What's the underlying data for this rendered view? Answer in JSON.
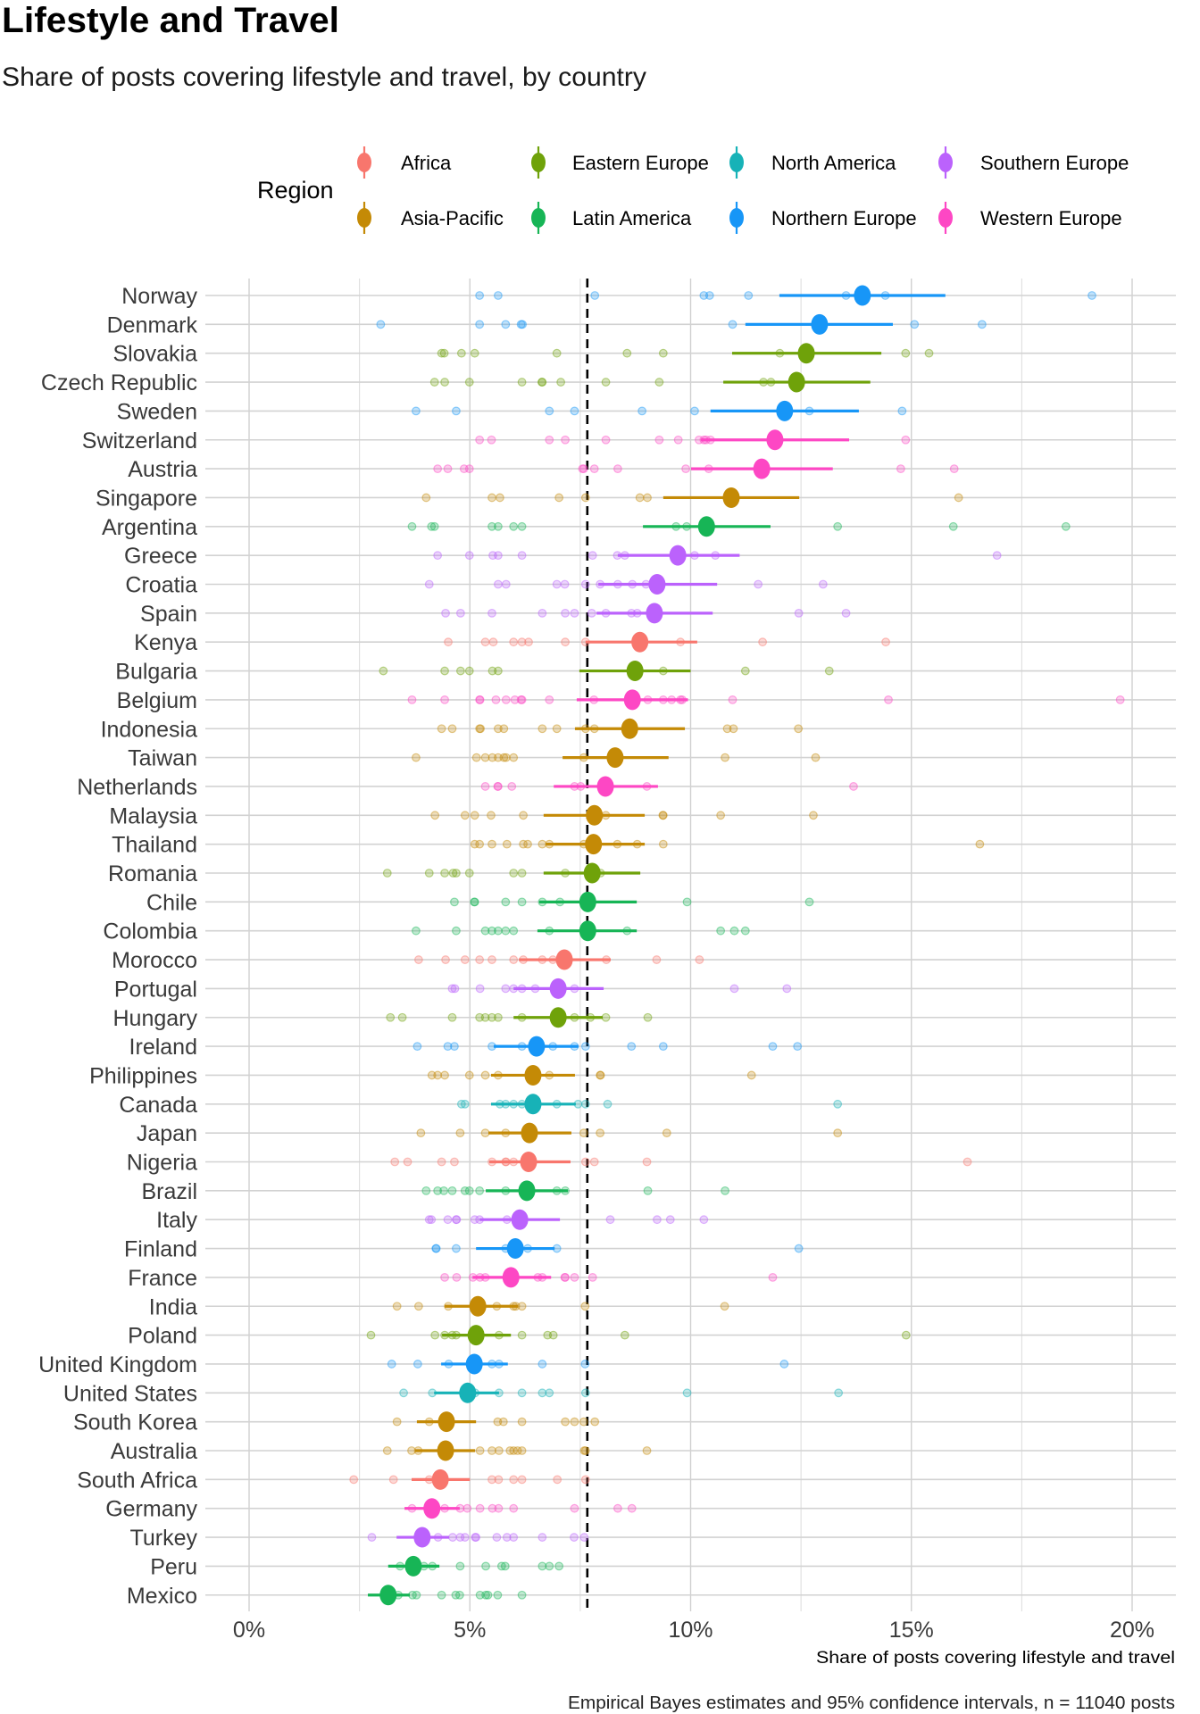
{
  "chart_data": {
    "type": "scatter",
    "title": "Lifestyle and Travel",
    "subtitle": "Share of posts covering lifestyle and travel, by country",
    "xlabel": "Share of posts covering lifestyle and travel",
    "ylabel": "",
    "caption": "Empirical Bayes estimates and 95% confidence intervals, n = 11040 posts",
    "xlim": [
      0,
      21
    ],
    "x_ticks": [
      0,
      5,
      10,
      15,
      20
    ],
    "x_tick_labels": [
      "0%",
      "5%",
      "10%",
      "15%",
      "20%"
    ],
    "x_minor_gridlines": [
      2.5,
      7.5,
      12.5,
      17.5
    ],
    "grid": true,
    "reference_line": {
      "value": 7.66,
      "style": "dashed"
    },
    "legend": {
      "title": "Region",
      "placement": "top",
      "entries": [
        {
          "name": "Africa",
          "color": "#F8766D"
        },
        {
          "name": "Asia-Pacific",
          "color": "#C48A06"
        },
        {
          "name": "Eastern Europe",
          "color": "#6FA20A"
        },
        {
          "name": "Latin America",
          "color": "#17B556"
        },
        {
          "name": "North America",
          "color": "#17B2B7"
        },
        {
          "name": "Northern Europe",
          "color": "#1796F7"
        },
        {
          "name": "Southern Europe",
          "color": "#BB62FC"
        },
        {
          "name": "Western Europe",
          "color": "#FD47C4"
        }
      ]
    },
    "series": [
      {
        "country": "Norway",
        "region": "Northern Europe",
        "estimate": 13.89,
        "ci": [
          12.01,
          15.77
        ],
        "points": [
          5.22,
          5.64,
          7.83,
          10.3,
          10.43,
          11.31,
          13.52,
          14.41,
          19.09
        ]
      },
      {
        "country": "Denmark",
        "region": "Northern Europe",
        "estimate": 12.92,
        "ci": [
          11.24,
          14.58
        ],
        "points": [
          2.98,
          5.22,
          5.81,
          6.16,
          6.19,
          10.95,
          15.07,
          16.6
        ]
      },
      {
        "country": "Slovakia",
        "region": "Eastern Europe",
        "estimate": 12.62,
        "ci": [
          10.94,
          14.32
        ],
        "points": [
          4.36,
          4.42,
          4.81,
          5.11,
          6.97,
          8.56,
          9.38,
          12.02,
          14.87,
          15.4
        ]
      },
      {
        "country": "Czech Republic",
        "region": "Eastern Europe",
        "estimate": 12.4,
        "ci": [
          10.74,
          14.07
        ],
        "points": [
          4.2,
          4.43,
          4.99,
          6.18,
          6.63,
          6.64,
          7.06,
          8.08,
          9.29,
          11.65,
          11.82
        ]
      },
      {
        "country": "Sweden",
        "region": "Northern Europe",
        "estimate": 12.13,
        "ci": [
          10.45,
          13.81
        ],
        "points": [
          3.78,
          4.69,
          6.8,
          7.37,
          8.9,
          10.09,
          12.69,
          14.79
        ]
      },
      {
        "country": "Switzerland",
        "region": "Western Europe",
        "estimate": 11.91,
        "ci": [
          10.23,
          13.59
        ],
        "points": [
          5.22,
          5.49,
          6.8,
          7.16,
          8.08,
          9.29,
          9.72,
          10.19,
          10.3,
          10.35,
          10.45,
          14.87
        ]
      },
      {
        "country": "Austria",
        "region": "Western Europe",
        "estimate": 11.61,
        "ci": [
          10.01,
          13.22
        ],
        "points": [
          4.27,
          4.5,
          4.87,
          4.99,
          7.55,
          7.58,
          7.82,
          8.35,
          9.89,
          10.41,
          14.76,
          15.97
        ]
      },
      {
        "country": "Singapore",
        "region": "Asia-Pacific",
        "estimate": 10.92,
        "ci": [
          9.38,
          12.46
        ],
        "points": [
          4.01,
          5.5,
          5.68,
          7.02,
          7.62,
          8.85,
          9.02,
          16.07
        ]
      },
      {
        "country": "Argentina",
        "region": "Latin America",
        "estimate": 10.36,
        "ci": [
          8.92,
          11.81
        ],
        "points": [
          3.69,
          4.13,
          4.2,
          5.5,
          5.64,
          5.99,
          6.18,
          9.67,
          9.91,
          13.33,
          15.95,
          18.5
        ]
      },
      {
        "country": "Greece",
        "region": "Southern Europe",
        "estimate": 9.71,
        "ci": [
          8.35,
          11.11
        ],
        "points": [
          4.27,
          4.99,
          5.52,
          5.64,
          6.18,
          7.78,
          8.34,
          8.51,
          10.09,
          10.56,
          16.94
        ]
      },
      {
        "country": "Croatia",
        "region": "Southern Europe",
        "estimate": 9.24,
        "ci": [
          7.91,
          10.6
        ],
        "points": [
          4.08,
          5.64,
          5.82,
          6.97,
          7.15,
          7.62,
          7.95,
          8.35,
          8.68,
          8.99,
          11.53,
          13.0
        ]
      },
      {
        "country": "Spain",
        "region": "Southern Europe",
        "estimate": 9.18,
        "ci": [
          7.87,
          10.5
        ],
        "points": [
          4.45,
          4.79,
          5.5,
          6.64,
          7.16,
          7.37,
          7.76,
          8.08,
          8.66,
          8.79,
          12.45,
          13.52
        ]
      },
      {
        "country": "Kenya",
        "region": "Africa",
        "estimate": 8.85,
        "ci": [
          7.62,
          10.15
        ],
        "points": [
          4.51,
          5.35,
          5.53,
          5.99,
          6.18,
          6.33,
          7.16,
          7.62,
          9.77,
          11.63,
          14.42
        ]
      },
      {
        "country": "Bulgaria",
        "region": "Eastern Europe",
        "estimate": 8.74,
        "ci": [
          7.48,
          10.0
        ],
        "points": [
          3.04,
          4.43,
          4.79,
          4.99,
          5.51,
          5.64,
          9.38,
          11.24,
          13.14
        ]
      },
      {
        "country": "Belgium",
        "region": "Western Europe",
        "estimate": 8.68,
        "ci": [
          7.42,
          9.94
        ],
        "points": [
          3.69,
          4.43,
          5.22,
          5.23,
          5.59,
          5.82,
          6.02,
          6.16,
          6.18,
          6.8,
          7.81,
          9.03,
          9.38,
          9.57,
          9.77,
          9.81,
          10.95,
          14.48,
          19.73
        ]
      },
      {
        "country": "Indonesia",
        "region": "Asia-Pacific",
        "estimate": 8.62,
        "ci": [
          7.38,
          9.87
        ],
        "points": [
          4.36,
          4.6,
          5.22,
          5.24,
          5.64,
          5.77,
          6.64,
          6.97,
          7.62,
          7.82,
          10.83,
          10.97,
          12.44
        ]
      },
      {
        "country": "Taiwan",
        "region": "Asia-Pacific",
        "estimate": 8.29,
        "ci": [
          7.1,
          9.5
        ],
        "points": [
          3.78,
          5.15,
          5.35,
          5.51,
          5.64,
          5.77,
          5.82,
          5.99,
          7.58,
          10.78,
          12.83
        ]
      },
      {
        "country": "Netherlands",
        "region": "Western Europe",
        "estimate": 8.07,
        "ci": [
          6.9,
          9.26
        ],
        "points": [
          5.35,
          5.63,
          5.64,
          5.95,
          7.37,
          7.51,
          9.01,
          13.69
        ]
      },
      {
        "country": "Malaysia",
        "region": "Asia-Pacific",
        "estimate": 7.82,
        "ci": [
          6.67,
          8.96
        ],
        "points": [
          4.21,
          4.89,
          5.11,
          5.48,
          6.21,
          8.08,
          9.37,
          9.38,
          10.68,
          12.78
        ]
      },
      {
        "country": "Thailand",
        "region": "Asia-Pacific",
        "estimate": 7.8,
        "ci": [
          6.72,
          8.96
        ],
        "points": [
          5.11,
          5.22,
          5.5,
          5.84,
          6.21,
          6.31,
          6.64,
          6.8,
          7.58,
          8.34,
          8.79,
          9.38,
          16.55
        ]
      },
      {
        "country": "Romania",
        "region": "Eastern Europe",
        "estimate": 7.77,
        "ci": [
          6.67,
          8.86
        ],
        "points": [
          3.13,
          4.08,
          4.43,
          4.62,
          4.69,
          4.99,
          5.99,
          6.18,
          7.16,
          7.96
        ]
      },
      {
        "country": "Chile",
        "region": "Latin America",
        "estimate": 7.67,
        "ci": [
          6.57,
          8.78
        ],
        "points": [
          4.65,
          5.1,
          5.11,
          5.81,
          6.18,
          6.64,
          7.04,
          9.92,
          12.69
        ]
      },
      {
        "country": "Colombia",
        "region": "Latin America",
        "estimate": 7.67,
        "ci": [
          6.53,
          8.78
        ],
        "points": [
          3.78,
          4.69,
          5.35,
          5.5,
          5.64,
          5.81,
          5.99,
          6.8,
          8.56,
          10.68,
          10.99,
          11.24
        ]
      },
      {
        "country": "Morocco",
        "region": "Africa",
        "estimate": 7.14,
        "ci": [
          6.11,
          8.19
        ],
        "points": [
          3.84,
          4.45,
          4.89,
          5.22,
          5.5,
          5.99,
          6.21,
          6.64,
          6.88,
          8.09,
          9.23,
          10.2
        ]
      },
      {
        "country": "Portugal",
        "region": "Southern Europe",
        "estimate": 7.0,
        "ci": [
          5.99,
          8.03
        ],
        "points": [
          4.6,
          4.66,
          5.23,
          5.81,
          5.99,
          6.18,
          6.48,
          7.37,
          10.99,
          12.18
        ]
      },
      {
        "country": "Hungary",
        "region": "Eastern Europe",
        "estimate": 7.0,
        "ci": [
          5.99,
          8.01
        ],
        "points": [
          3.2,
          3.47,
          4.6,
          5.22,
          5.35,
          5.5,
          5.64,
          6.18,
          7.37,
          7.73,
          8.08,
          9.03
        ]
      },
      {
        "country": "Ireland",
        "region": "Northern Europe",
        "estimate": 6.51,
        "ci": [
          5.54,
          7.46
        ],
        "points": [
          3.81,
          4.5,
          4.65,
          5.5,
          6.18,
          6.88,
          7.37,
          7.62,
          8.66,
          9.38,
          11.86,
          12.42
        ]
      },
      {
        "country": "Philippines",
        "region": "Asia-Pacific",
        "estimate": 6.43,
        "ci": [
          5.48,
          7.38
        ],
        "points": [
          4.14,
          4.27,
          4.43,
          4.99,
          5.35,
          5.64,
          6.8,
          7.95,
          7.96,
          11.38
        ]
      },
      {
        "country": "Canada",
        "region": "North America",
        "estimate": 6.43,
        "ci": [
          5.48,
          7.4
        ],
        "points": [
          4.81,
          4.89,
          5.68,
          5.81,
          5.99,
          6.18,
          6.97,
          7.45,
          7.62,
          8.12,
          13.33
        ]
      },
      {
        "country": "Japan",
        "region": "Asia-Pacific",
        "estimate": 6.35,
        "ci": [
          5.42,
          7.3
        ],
        "points": [
          3.89,
          4.78,
          5.35,
          5.81,
          7.58,
          7.95,
          9.46,
          13.33
        ]
      },
      {
        "country": "Nigeria",
        "region": "Africa",
        "estimate": 6.33,
        "ci": [
          5.44,
          7.28
        ],
        "points": [
          3.3,
          3.59,
          4.36,
          4.65,
          5.5,
          5.81,
          5.82,
          5.99,
          7.62,
          7.82,
          9.01,
          16.27
        ]
      },
      {
        "country": "Brazil",
        "region": "Latin America",
        "estimate": 6.29,
        "ci": [
          5.36,
          7.22
        ],
        "points": [
          4.01,
          4.27,
          4.41,
          4.6,
          4.89,
          4.99,
          5.22,
          5.81,
          6.97,
          7.16,
          9.03,
          10.78
        ]
      },
      {
        "country": "Italy",
        "region": "Southern Europe",
        "estimate": 6.13,
        "ci": [
          5.22,
          7.04
        ],
        "points": [
          4.08,
          4.13,
          4.5,
          4.69,
          4.7,
          5.11,
          5.22,
          5.84,
          8.18,
          9.24,
          9.54,
          10.3
        ]
      },
      {
        "country": "Finland",
        "region": "Northern Europe",
        "estimate": 6.03,
        "ci": [
          5.14,
          6.92
        ],
        "points": [
          4.23,
          4.24,
          4.69,
          5.81,
          6.31,
          6.97,
          12.45
        ]
      },
      {
        "country": "France",
        "region": "Western Europe",
        "estimate": 5.93,
        "ci": [
          5.06,
          6.84
        ],
        "points": [
          4.43,
          4.7,
          5.07,
          5.23,
          5.35,
          6.54,
          6.64,
          7.15,
          7.16,
          7.37,
          7.78,
          11.86
        ]
      },
      {
        "country": "India",
        "region": "Asia-Pacific",
        "estimate": 5.18,
        "ci": [
          4.43,
          6.09
        ],
        "points": [
          3.35,
          3.84,
          4.51,
          5.61,
          5.99,
          6.04,
          6.18,
          7.61,
          10.77
        ]
      },
      {
        "country": "Poland",
        "region": "Eastern Europe",
        "estimate": 5.14,
        "ci": [
          4.37,
          5.93
        ],
        "points": [
          2.76,
          4.21,
          4.43,
          4.6,
          4.69,
          5.66,
          6.18,
          6.76,
          6.89,
          8.51,
          14.88
        ]
      },
      {
        "country": "United Kingdom",
        "region": "Northern Europe",
        "estimate": 5.1,
        "ci": [
          4.35,
          5.86
        ],
        "points": [
          3.23,
          3.82,
          4.52,
          5.5,
          5.66,
          6.64,
          7.61,
          12.12
        ]
      },
      {
        "country": "United States",
        "region": "North America",
        "estimate": 4.95,
        "ci": [
          4.19,
          5.66
        ],
        "points": [
          3.5,
          4.15,
          5.12,
          5.66,
          6.18,
          6.64,
          6.8,
          7.62,
          9.92,
          13.35
        ]
      },
      {
        "country": "South Korea",
        "region": "Asia-Pacific",
        "estimate": 4.47,
        "ci": [
          3.8,
          5.14
        ],
        "points": [
          3.35,
          4.08,
          5.63,
          5.76,
          6.18,
          7.16,
          7.37,
          7.58,
          7.83
        ]
      },
      {
        "country": "Australia",
        "region": "Asia-Pacific",
        "estimate": 4.45,
        "ci": [
          3.76,
          5.12
        ],
        "points": [
          3.13,
          3.68,
          3.83,
          5.23,
          5.5,
          5.66,
          5.91,
          5.99,
          6.08,
          6.18,
          7.59,
          7.62,
          9.01
        ]
      },
      {
        "country": "South Africa",
        "region": "Africa",
        "estimate": 4.33,
        "ci": [
          3.68,
          5.0
        ],
        "points": [
          2.37,
          3.27,
          4.08,
          5.5,
          5.65,
          5.99,
          6.18,
          6.98,
          7.62
        ]
      },
      {
        "country": "Germany",
        "region": "Western Europe",
        "estimate": 4.14,
        "ci": [
          3.52,
          4.77
        ],
        "points": [
          3.69,
          4.43,
          4.78,
          4.94,
          5.23,
          5.51,
          5.65,
          5.99,
          7.37,
          8.35,
          8.67
        ]
      },
      {
        "country": "Turkey",
        "region": "Southern Europe",
        "estimate": 3.92,
        "ci": [
          3.34,
          4.53
        ],
        "points": [
          2.78,
          4.28,
          4.61,
          4.78,
          4.89,
          5.12,
          5.14,
          5.61,
          5.84,
          5.99,
          6.64,
          7.36,
          7.59
        ]
      },
      {
        "country": "Peru",
        "region": "Latin America",
        "estimate": 3.72,
        "ci": [
          3.15,
          4.31
        ],
        "points": [
          3.42,
          3.96,
          4.15,
          4.78,
          5.36,
          5.72,
          5.8,
          6.64,
          6.8,
          7.02
        ]
      },
      {
        "country": "Mexico",
        "region": "Latin America",
        "estimate": 3.15,
        "ci": [
          2.69,
          3.64
        ],
        "points": [
          3.38,
          3.7,
          3.79,
          4.36,
          4.68,
          4.77,
          5.23,
          5.36,
          5.41,
          5.63,
          6.18
        ]
      }
    ]
  }
}
